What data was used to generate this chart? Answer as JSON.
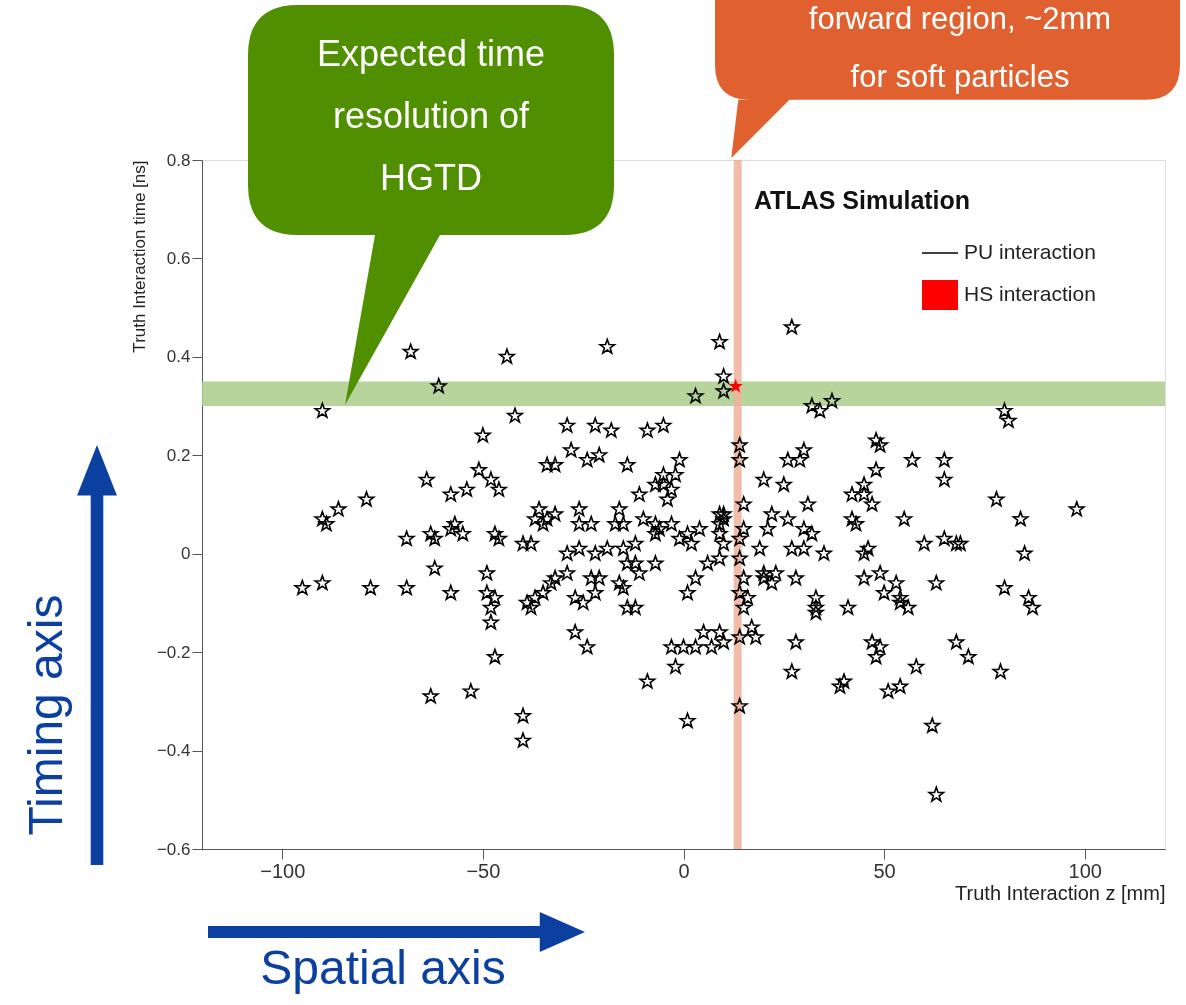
{
  "chart_data": {
    "type": "scatter",
    "xlabel": "Truth Interaction z [mm]",
    "ylabel": "Truth Interaction time [ns]",
    "xlim": [
      -120,
      120
    ],
    "ylim": [
      -0.6,
      0.8
    ],
    "xticks": [
      {
        "value": -100,
        "label": "−100"
      },
      {
        "value": -50,
        "label": "−50"
      },
      0,
      50,
      100
    ],
    "yticks": [
      {
        "value": -0.6,
        "label": "−0.6"
      },
      {
        "value": -0.4,
        "label": "−0.4"
      },
      {
        "value": -0.2,
        "label": "−0.2"
      },
      0,
      0.2,
      0.4,
      0.6,
      0.8
    ],
    "grid": false,
    "legend": "top right",
    "marker": "star",
    "annotations": [
      "ATLAS Simulation",
      "Timing axis",
      "Spatial axis",
      "Expected time\nresolution of\nHGTD",
      "forward region, ~2mm\nfor soft particles"
    ],
    "bands": [
      {
        "axis": "y",
        "from": 0.3,
        "to": 0.35,
        "color": "#a9cc8b"
      },
      {
        "axis": "x",
        "from": 12.5,
        "to": 14.5,
        "color": "#f0b09c"
      }
    ],
    "series": [
      {
        "name": "PU interaction",
        "color": "#000000",
        "x": [
          27,
          -68,
          -44,
          -19,
          9,
          10,
          -61,
          10,
          3,
          -90,
          32,
          34,
          37,
          80,
          81,
          -42,
          -50,
          -29,
          -22,
          -18,
          -9,
          -5,
          14,
          14,
          48,
          49,
          30,
          29,
          26,
          57,
          65,
          65,
          48,
          -34,
          -32,
          -28,
          -24,
          -21,
          -14,
          -1,
          -2,
          -64,
          -58,
          -54,
          -51,
          -48,
          -46,
          -5,
          -5,
          -3,
          -7,
          -11,
          -4,
          20,
          25,
          31,
          42,
          45,
          45,
          47,
          78,
          98,
          -79,
          -86,
          -90,
          -89,
          -62,
          -63,
          -69,
          -58,
          -57,
          -55,
          -47,
          -46,
          -36,
          -37,
          -35,
          -32,
          -34,
          -26,
          -26,
          -23,
          -40,
          -38,
          -16,
          -17,
          -15,
          -10,
          -7,
          -7,
          -6,
          -3,
          9,
          10,
          10,
          9,
          15,
          15,
          14,
          9,
          10,
          22,
          21,
          26,
          30,
          32,
          19,
          27,
          30,
          35,
          42,
          43,
          45,
          46,
          55,
          60,
          65,
          68,
          69,
          84,
          85,
          2,
          -1,
          1,
          4,
          -12,
          -15,
          -26,
          -29,
          -22,
          -19,
          -95,
          -90,
          -78,
          -69,
          -62,
          -58,
          -49,
          -49,
          -47,
          -48,
          -48,
          -47,
          -39,
          -38,
          -37,
          -35,
          -33,
          -32,
          -29,
          -27,
          -25,
          -23,
          -21,
          -22,
          -16,
          -15,
          -14,
          -12,
          -11,
          -12,
          -14,
          -7,
          1,
          3,
          6,
          9,
          14,
          15,
          14,
          16,
          15,
          20,
          20,
          22,
          23,
          28,
          33,
          33,
          33,
          41,
          45,
          49,
          50,
          53,
          54,
          54,
          56,
          63,
          80,
          86,
          87,
          -27,
          -24,
          5,
          -3,
          0,
          3,
          7,
          9,
          10,
          14,
          17,
          18,
          28,
          27,
          47,
          49,
          48,
          58,
          68,
          71,
          79,
          -9,
          -2,
          39,
          40,
          51,
          54,
          -63,
          -53,
          -40,
          -40,
          1,
          14,
          62,
          63
        ],
        "values": [
          0.46,
          0.41,
          0.4,
          0.42,
          0.43,
          0.36,
          0.34,
          0.33,
          0.32,
          0.29,
          0.3,
          0.29,
          0.31,
          0.29,
          0.27,
          0.28,
          0.24,
          0.26,
          0.26,
          0.25,
          0.25,
          0.26,
          0.22,
          0.19,
          0.23,
          0.22,
          0.21,
          0.19,
          0.19,
          0.19,
          0.19,
          0.15,
          0.17,
          0.18,
          0.18,
          0.21,
          0.19,
          0.2,
          0.18,
          0.19,
          0.16,
          0.15,
          0.12,
          0.13,
          0.17,
          0.15,
          0.13,
          0.16,
          0.14,
          0.13,
          0.14,
          0.12,
          0.11,
          0.15,
          0.14,
          0.1,
          0.12,
          0.14,
          0.12,
          0.1,
          0.11,
          0.09,
          0.11,
          0.09,
          0.07,
          0.06,
          0.03,
          0.04,
          0.03,
          0.05,
          0.06,
          0.04,
          0.04,
          0.03,
          0.09,
          0.07,
          0.06,
          0.08,
          0.07,
          0.09,
          0.06,
          0.06,
          0.02,
          0.02,
          0.09,
          0.06,
          0.06,
          0.07,
          0.06,
          0.04,
          0.05,
          0.06,
          0.08,
          0.08,
          0.07,
          0.06,
          0.1,
          0.05,
          0.03,
          0.04,
          0.02,
          0.08,
          0.05,
          0.07,
          0.05,
          0.04,
          0.01,
          0.01,
          0.01,
          0.0,
          0.07,
          0.06,
          0.0,
          0.01,
          0.07,
          0.02,
          0.03,
          0.02,
          0.02,
          0.07,
          0.0,
          0.02,
          0.03,
          0.04,
          0.05,
          0.02,
          0.01,
          0.01,
          0.0,
          0.0,
          0.01,
          -0.07,
          -0.06,
          -0.07,
          -0.07,
          -0.03,
          -0.08,
          -0.04,
          -0.08,
          -0.09,
          -0.11,
          -0.14,
          -0.21,
          -0.1,
          -0.11,
          -0.09,
          -0.08,
          -0.06,
          -0.05,
          -0.04,
          -0.09,
          -0.1,
          -0.05,
          -0.05,
          -0.08,
          -0.06,
          -0.07,
          -0.11,
          -0.11,
          -0.04,
          -0.02,
          -0.02,
          -0.02,
          -0.08,
          -0.05,
          -0.02,
          -0.01,
          -0.01,
          -0.05,
          -0.08,
          -0.09,
          -0.11,
          -0.04,
          -0.05,
          -0.06,
          -0.04,
          -0.05,
          -0.09,
          -0.11,
          -0.12,
          -0.11,
          -0.05,
          -0.04,
          -0.08,
          -0.06,
          -0.09,
          -0.1,
          -0.11,
          -0.06,
          -0.07,
          -0.09,
          -0.11,
          -0.16,
          -0.19,
          -0.16,
          -0.19,
          -0.19,
          -0.19,
          -0.19,
          -0.16,
          -0.18,
          -0.17,
          -0.15,
          -0.17,
          -0.18,
          -0.24,
          -0.18,
          -0.19,
          -0.21,
          -0.23,
          -0.18,
          -0.21,
          -0.24,
          -0.26,
          -0.23,
          -0.27,
          -0.26,
          -0.28,
          -0.27,
          -0.29,
          -0.28,
          -0.33,
          -0.38,
          -0.34,
          -0.31,
          -0.35,
          -0.49
        ]
      },
      {
        "name": "HS interaction",
        "color": "#ff0000",
        "x": [
          13
        ],
        "values": [
          0.34
        ]
      }
    ]
  }
}
